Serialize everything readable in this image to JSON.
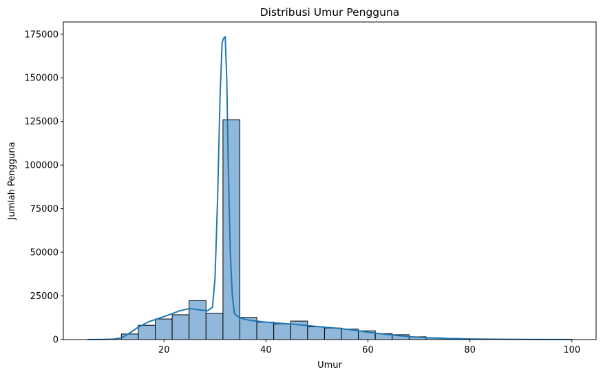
{
  "chart_data": {
    "type": "bar",
    "title": "Distribusi Umur Pengguna",
    "xlabel": "Umur",
    "ylabel": "Jumlah Pengguna",
    "xlim": [
      0.25,
      104.75
    ],
    "ylim": [
      0,
      182000
    ],
    "xticks": [
      20,
      40,
      60,
      80,
      100
    ],
    "xtick_labels": [
      "20",
      "40",
      "60",
      "80",
      "100"
    ],
    "yticks": [
      0,
      25000,
      50000,
      75000,
      100000,
      125000,
      150000,
      175000
    ],
    "ytick_labels": [
      "0",
      "25000",
      "50000",
      "75000",
      "100000",
      "125000",
      "150000",
      "175000"
    ],
    "grid": false,
    "bar_fill": "#8fb8db",
    "bar_edge": "#000000",
    "kde_color": "#1f77b4",
    "bins": [
      {
        "left": 5.0,
        "right": 8.32,
        "value": 0
      },
      {
        "left": 8.32,
        "right": 11.64,
        "value": 0
      },
      {
        "left": 11.64,
        "right": 14.96,
        "value": 3200
      },
      {
        "left": 14.96,
        "right": 18.28,
        "value": 8200
      },
      {
        "left": 18.28,
        "right": 21.6,
        "value": 11800
      },
      {
        "left": 21.6,
        "right": 24.92,
        "value": 14200
      },
      {
        "left": 24.92,
        "right": 28.24,
        "value": 22300
      },
      {
        "left": 28.24,
        "right": 31.56,
        "value": 15100
      },
      {
        "left": 31.56,
        "right": 34.88,
        "value": 126000
      },
      {
        "left": 34.88,
        "right": 38.2,
        "value": 12700
      },
      {
        "left": 38.2,
        "right": 41.52,
        "value": 10000
      },
      {
        "left": 41.52,
        "right": 44.84,
        "value": 9000
      },
      {
        "left": 44.84,
        "right": 48.16,
        "value": 10600
      },
      {
        "left": 48.16,
        "right": 51.48,
        "value": 7300
      },
      {
        "left": 51.48,
        "right": 54.8,
        "value": 6600
      },
      {
        "left": 54.8,
        "right": 58.12,
        "value": 6000
      },
      {
        "left": 58.12,
        "right": 61.44,
        "value": 5000
      },
      {
        "left": 61.44,
        "right": 64.76,
        "value": 3400
      },
      {
        "left": 64.76,
        "right": 68.08,
        "value": 2800
      },
      {
        "left": 68.08,
        "right": 71.4,
        "value": 1600
      },
      {
        "left": 71.4,
        "right": 74.72,
        "value": 1000
      },
      {
        "left": 74.72,
        "right": 78.04,
        "value": 700
      },
      {
        "left": 78.04,
        "right": 81.36,
        "value": 400
      },
      {
        "left": 81.36,
        "right": 84.68,
        "value": 250
      },
      {
        "left": 84.68,
        "right": 88.0,
        "value": 150
      },
      {
        "left": 88.0,
        "right": 91.32,
        "value": 80
      },
      {
        "left": 91.32,
        "right": 94.64,
        "value": 50
      },
      {
        "left": 94.64,
        "right": 97.96,
        "value": 30
      },
      {
        "left": 97.96,
        "right": 101.28,
        "value": 20
      }
    ],
    "kde": {
      "x": [
        5,
        8,
        10,
        11.6,
        13,
        15,
        17,
        19,
        21,
        23,
        25,
        27,
        28.5,
        29.5,
        30,
        30.5,
        31,
        31.4,
        31.6,
        31.8,
        32.0,
        32.3,
        32.6,
        33.0,
        33.4,
        33.8,
        34.2,
        34.6,
        35,
        36,
        37,
        40,
        43,
        46,
        50,
        54,
        57,
        59,
        60,
        62,
        64,
        66,
        68,
        70,
        75,
        80,
        85,
        90,
        95,
        100
      ],
      "y": [
        0,
        100,
        250,
        900,
        3200,
        7200,
        10200,
        12200,
        14200,
        16400,
        17800,
        17000,
        16500,
        18500,
        35000,
        80000,
        140000,
        170000,
        172000,
        173200,
        173500,
        150000,
        100000,
        50000,
        25000,
        15000,
        13800,
        13000,
        12400,
        11500,
        11000,
        10000,
        9300,
        8600,
        7500,
        6500,
        5500,
        4700,
        4200,
        3500,
        2800,
        2200,
        1700,
        1300,
        700,
        350,
        200,
        120,
        60,
        30
      ]
    }
  }
}
